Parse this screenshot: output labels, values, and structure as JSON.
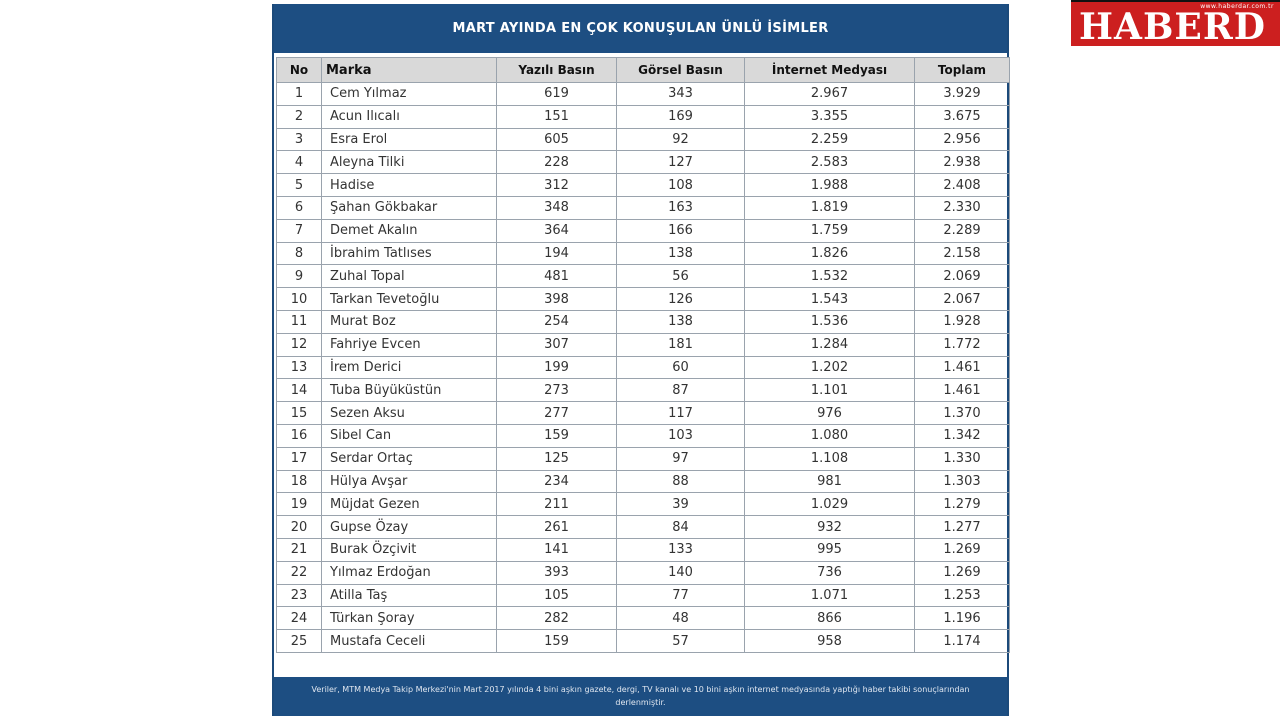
{
  "logo": {
    "text": "HABERD",
    "url": "www.haberdar.com.tr"
  },
  "table": {
    "title": "MART AYINDA EN ÇOK KONUŞULAN ÜNLÜ İSİMLER",
    "headers": [
      "No",
      "Marka",
      "Yazılı Basın",
      "Görsel Basın",
      "İnternet Medyası",
      "Toplam"
    ],
    "rows": [
      {
        "no": "1",
        "name": "Cem Yılmaz",
        "yazili": "619",
        "gorsel": "343",
        "internet": "2.967",
        "toplam": "3.929"
      },
      {
        "no": "2",
        "name": "Acun Ilıcalı",
        "yazili": "151",
        "gorsel": "169",
        "internet": "3.355",
        "toplam": "3.675"
      },
      {
        "no": "3",
        "name": "Esra Erol",
        "yazili": "605",
        "gorsel": "92",
        "internet": "2.259",
        "toplam": "2.956"
      },
      {
        "no": "4",
        "name": "Aleyna Tilki",
        "yazili": "228",
        "gorsel": "127",
        "internet": "2.583",
        "toplam": "2.938"
      },
      {
        "no": "5",
        "name": "Hadise",
        "yazili": "312",
        "gorsel": "108",
        "internet": "1.988",
        "toplam": "2.408"
      },
      {
        "no": "6",
        "name": "Şahan Gökbakar",
        "yazili": "348",
        "gorsel": "163",
        "internet": "1.819",
        "toplam": "2.330"
      },
      {
        "no": "7",
        "name": "Demet Akalın",
        "yazili": "364",
        "gorsel": "166",
        "internet": "1.759",
        "toplam": "2.289"
      },
      {
        "no": "8",
        "name": "İbrahim Tatlıses",
        "yazili": "194",
        "gorsel": "138",
        "internet": "1.826",
        "toplam": "2.158"
      },
      {
        "no": "9",
        "name": "Zuhal Topal",
        "yazili": "481",
        "gorsel": "56",
        "internet": "1.532",
        "toplam": "2.069"
      },
      {
        "no": "10",
        "name": "Tarkan Tevetoğlu",
        "yazili": "398",
        "gorsel": "126",
        "internet": "1.543",
        "toplam": "2.067"
      },
      {
        "no": "11",
        "name": "Murat Boz",
        "yazili": "254",
        "gorsel": "138",
        "internet": "1.536",
        "toplam": "1.928"
      },
      {
        "no": "12",
        "name": "Fahriye Evcen",
        "yazili": "307",
        "gorsel": "181",
        "internet": "1.284",
        "toplam": "1.772"
      },
      {
        "no": "13",
        "name": "İrem Derici",
        "yazili": "199",
        "gorsel": "60",
        "internet": "1.202",
        "toplam": "1.461"
      },
      {
        "no": "14",
        "name": "Tuba Büyüküstün",
        "yazili": "273",
        "gorsel": "87",
        "internet": "1.101",
        "toplam": "1.461"
      },
      {
        "no": "15",
        "name": "Sezen Aksu",
        "yazili": "277",
        "gorsel": "117",
        "internet": "976",
        "toplam": "1.370"
      },
      {
        "no": "16",
        "name": "Sibel Can",
        "yazili": "159",
        "gorsel": "103",
        "internet": "1.080",
        "toplam": "1.342"
      },
      {
        "no": "17",
        "name": "Serdar Ortaç",
        "yazili": "125",
        "gorsel": "97",
        "internet": "1.108",
        "toplam": "1.330"
      },
      {
        "no": "18",
        "name": "Hülya Avşar",
        "yazili": "234",
        "gorsel": "88",
        "internet": "981",
        "toplam": "1.303"
      },
      {
        "no": "19",
        "name": "Müjdat Gezen",
        "yazili": "211",
        "gorsel": "39",
        "internet": "1.029",
        "toplam": "1.279"
      },
      {
        "no": "20",
        "name": "Gupse Özay",
        "yazili": "261",
        "gorsel": "84",
        "internet": "932",
        "toplam": "1.277"
      },
      {
        "no": "21",
        "name": "Burak Özçivit",
        "yazili": "141",
        "gorsel": "133",
        "internet": "995",
        "toplam": "1.269"
      },
      {
        "no": "22",
        "name": "Yılmaz Erdoğan",
        "yazili": "393",
        "gorsel": "140",
        "internet": "736",
        "toplam": "1.269"
      },
      {
        "no": "23",
        "name": "Atilla Taş",
        "yazili": "105",
        "gorsel": "77",
        "internet": "1.071",
        "toplam": "1.253"
      },
      {
        "no": "24",
        "name": "Türkan Şoray",
        "yazili": "282",
        "gorsel": "48",
        "internet": "866",
        "toplam": "1.196"
      },
      {
        "no": "25",
        "name": "Mustafa Ceceli",
        "yazili": "159",
        "gorsel": "57",
        "internet": "958",
        "toplam": "1.174"
      }
    ],
    "footnote": "Veriler, MTM Medya Takip Merkezi'nin Mart 2017 yılında 4 bini aşkın gazete, dergi, TV kanalı ve 10 bini aşkın internet medyasında yaptığı haber takibi sonuçlarından derlenmiştir."
  },
  "colors": {
    "header_bg": "#1d4e82",
    "logo_bg": "#cc1f1f",
    "table_header_bg": "#d9d9d9"
  }
}
